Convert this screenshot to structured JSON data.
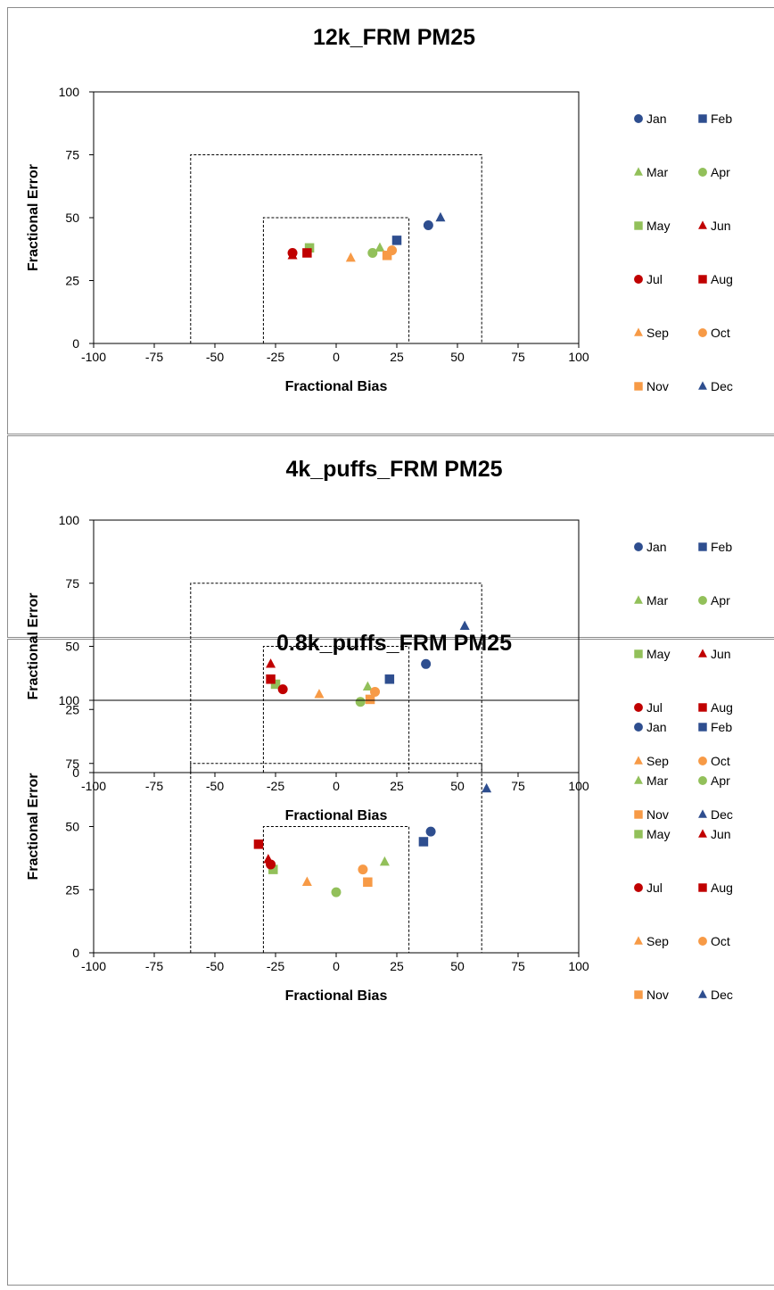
{
  "legend_entries": [
    {
      "label": "Jan",
      "color": "#2E4E8F",
      "marker": "circle"
    },
    {
      "label": "Feb",
      "color": "#2E4E8F",
      "marker": "square"
    },
    {
      "label": "Mar",
      "color": "#92C05A",
      "marker": "triangle"
    },
    {
      "label": "Apr",
      "color": "#92C05A",
      "marker": "circle"
    },
    {
      "label": "May",
      "color": "#92C05A",
      "marker": "square"
    },
    {
      "label": "Jun",
      "color": "#C00000",
      "marker": "triangle"
    },
    {
      "label": "Jul",
      "color": "#C00000",
      "marker": "circle"
    },
    {
      "label": "Aug",
      "color": "#C00000",
      "marker": "square"
    },
    {
      "label": "Sep",
      "color": "#F79A46",
      "marker": "triangle"
    },
    {
      "label": "Oct",
      "color": "#F79A46",
      "marker": "circle"
    },
    {
      "label": "Nov",
      "color": "#F79A46",
      "marker": "square"
    },
    {
      "label": "Dec",
      "color": "#2E4E8F",
      "marker": "triangle"
    }
  ],
  "chart_data": [
    {
      "type": "scatter",
      "title": "12k_FRM PM25",
      "xlabel": "Fractional Bias",
      "ylabel": "Fractional Error",
      "xlim": [
        -100,
        100
      ],
      "ylim": [
        0,
        100
      ],
      "xticks": [
        -100,
        -75,
        -50,
        -25,
        0,
        25,
        50,
        75,
        100
      ],
      "yticks": [
        0,
        25,
        50,
        75,
        100
      ],
      "grid": false,
      "legend_position": "right",
      "goal_boxes": [
        {
          "x": [
            -30,
            30
          ],
          "y": [
            0,
            50
          ]
        },
        {
          "x": [
            -60,
            60
          ],
          "y": [
            0,
            75
          ]
        }
      ],
      "series": [
        {
          "name": "Jan",
          "x": 38,
          "y": 47
        },
        {
          "name": "Feb",
          "x": 25,
          "y": 41
        },
        {
          "name": "Mar",
          "x": 18,
          "y": 38
        },
        {
          "name": "Apr",
          "x": 15,
          "y": 36
        },
        {
          "name": "May",
          "x": -11,
          "y": 38
        },
        {
          "name": "Jun",
          "x": -18,
          "y": 35
        },
        {
          "name": "Jul",
          "x": -18,
          "y": 36
        },
        {
          "name": "Aug",
          "x": -12,
          "y": 36
        },
        {
          "name": "Sep",
          "x": 6,
          "y": 34
        },
        {
          "name": "Oct",
          "x": 23,
          "y": 37
        },
        {
          "name": "Nov",
          "x": 21,
          "y": 35
        },
        {
          "name": "Dec",
          "x": 43,
          "y": 50
        }
      ]
    },
    {
      "type": "scatter",
      "title": "4k_puffs_FRM PM25",
      "xlabel": "Fractional Bias",
      "ylabel": "Fractional Error",
      "xlim": [
        -100,
        100
      ],
      "ylim": [
        0,
        100
      ],
      "xticks": [
        -100,
        -75,
        -50,
        -25,
        0,
        25,
        50,
        75,
        100
      ],
      "yticks": [
        0,
        25,
        50,
        75,
        100
      ],
      "grid": false,
      "legend_position": "right",
      "goal_boxes": [
        {
          "x": [
            -30,
            30
          ],
          "y": [
            0,
            50
          ]
        },
        {
          "x": [
            -60,
            60
          ],
          "y": [
            0,
            75
          ]
        }
      ],
      "series": [
        {
          "name": "Jan",
          "x": 37,
          "y": 43
        },
        {
          "name": "Feb",
          "x": 22,
          "y": 37
        },
        {
          "name": "Mar",
          "x": 13,
          "y": 34
        },
        {
          "name": "Apr",
          "x": 10,
          "y": 28
        },
        {
          "name": "May",
          "x": -25,
          "y": 35
        },
        {
          "name": "Jun",
          "x": -27,
          "y": 43
        },
        {
          "name": "Jul",
          "x": -22,
          "y": 33
        },
        {
          "name": "Aug",
          "x": -27,
          "y": 37
        },
        {
          "name": "Sep",
          "x": -7,
          "y": 31
        },
        {
          "name": "Oct",
          "x": 16,
          "y": 32
        },
        {
          "name": "Nov",
          "x": 14,
          "y": 29
        },
        {
          "name": "Dec",
          "x": 53,
          "y": 58
        }
      ]
    },
    {
      "type": "scatter",
      "title": "0.8k_puffs_FRM  PM25",
      "xlabel": "Fractional Bias",
      "ylabel": "Fractional Error",
      "xlim": [
        -100,
        100
      ],
      "ylim": [
        0,
        100
      ],
      "xticks": [
        -100,
        -75,
        -50,
        -25,
        0,
        25,
        50,
        75,
        100
      ],
      "yticks": [
        0,
        25,
        50,
        75,
        100
      ],
      "grid": false,
      "legend_position": "right",
      "goal_boxes": [
        {
          "x": [
            -30,
            30
          ],
          "y": [
            0,
            50
          ]
        },
        {
          "x": [
            -60,
            60
          ],
          "y": [
            0,
            75
          ]
        }
      ],
      "series": [
        {
          "name": "Jan",
          "x": 39,
          "y": 48
        },
        {
          "name": "Feb",
          "x": 36,
          "y": 44
        },
        {
          "name": "Mar",
          "x": 20,
          "y": 36
        },
        {
          "name": "Apr",
          "x": 0,
          "y": 24
        },
        {
          "name": "May",
          "x": -26,
          "y": 33
        },
        {
          "name": "Jun",
          "x": -28,
          "y": 37
        },
        {
          "name": "Jul",
          "x": -27,
          "y": 35
        },
        {
          "name": "Aug",
          "x": -32,
          "y": 43
        },
        {
          "name": "Sep",
          "x": -12,
          "y": 28
        },
        {
          "name": "Oct",
          "x": 11,
          "y": 33
        },
        {
          "name": "Nov",
          "x": 13,
          "y": 28
        },
        {
          "name": "Dec",
          "x": 62,
          "y": 65
        }
      ]
    }
  ]
}
